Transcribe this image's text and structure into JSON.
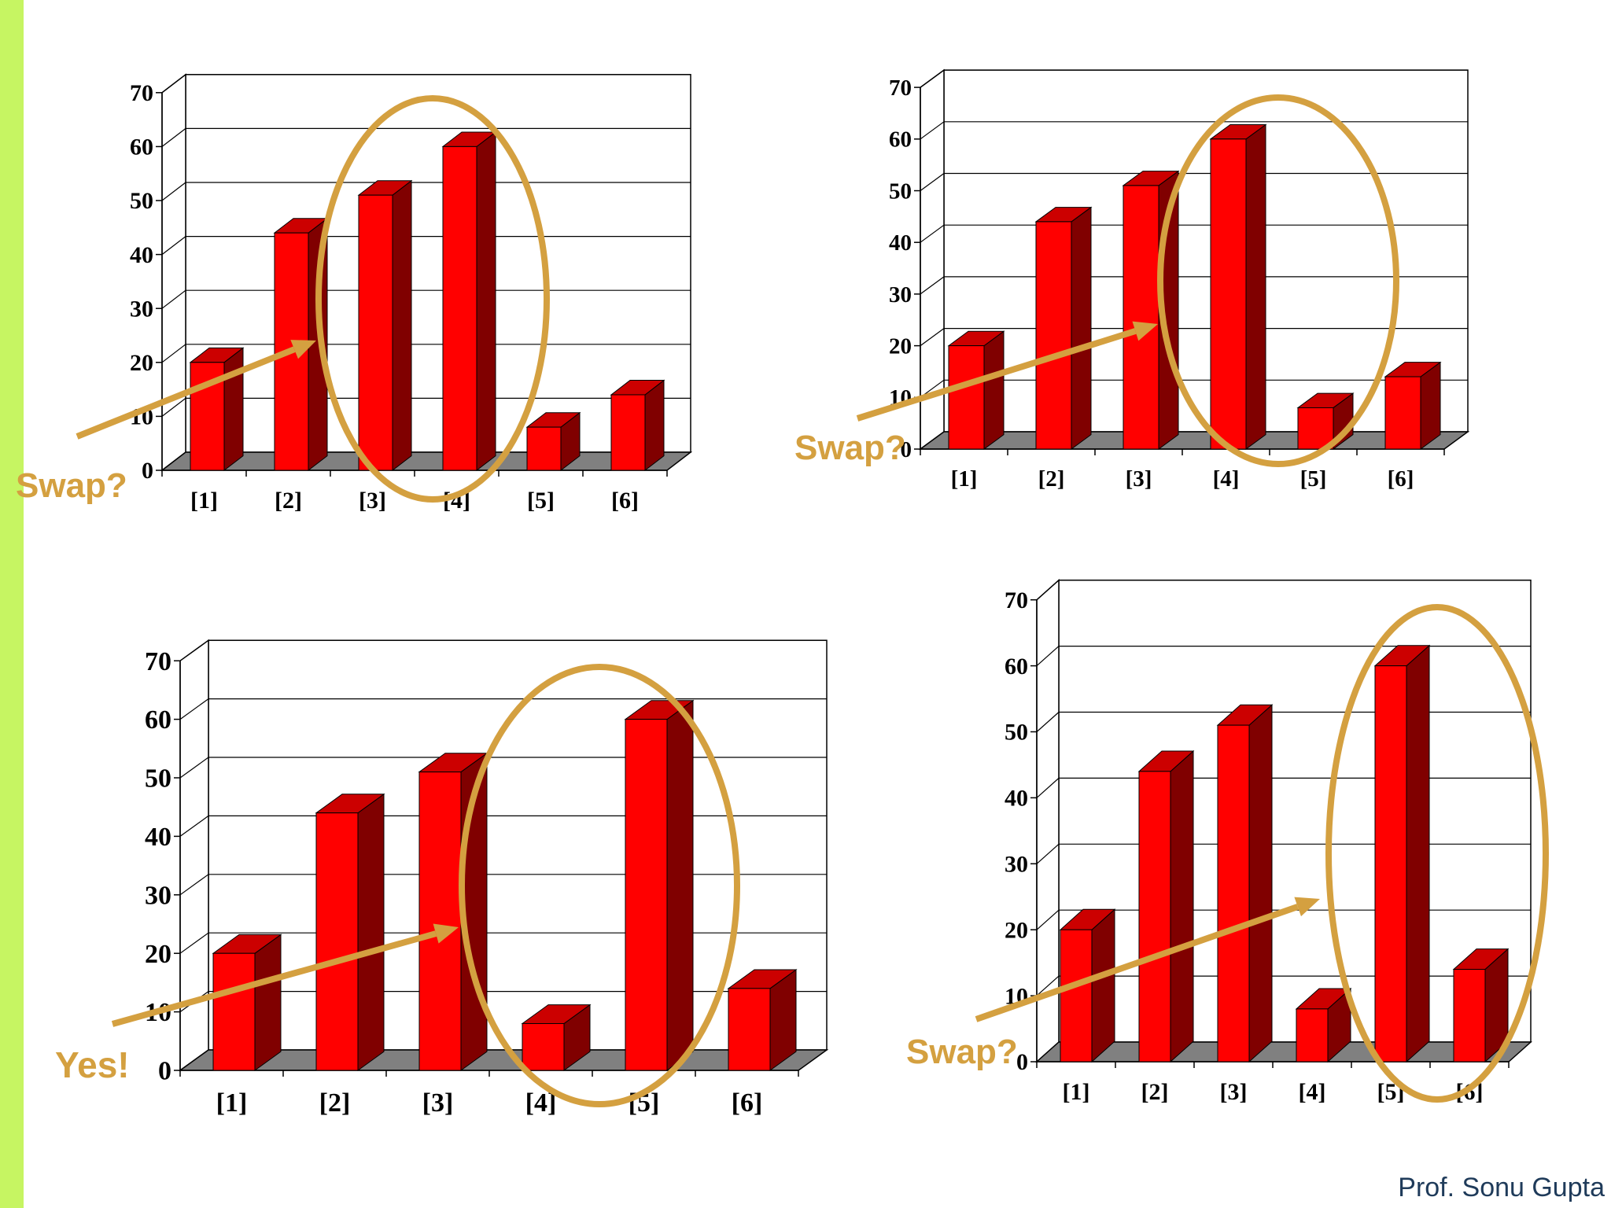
{
  "colors": {
    "accent_bar": "#c6f562",
    "bar_front": "#ff0000",
    "bar_top": "#cc0000",
    "bar_side": "#800000",
    "floor": "#808080",
    "highlight": "#d4a040",
    "footer": "#1f3b5a"
  },
  "footer": {
    "credit": "Prof. Sonu Gupta"
  },
  "chart_data": [
    {
      "type": "bar",
      "categories": [
        "[1]",
        "[2]",
        "[3]",
        "[4]",
        "[5]",
        "[6]"
      ],
      "values": [
        20,
        44,
        51,
        60,
        8,
        14
      ],
      "ylim": [
        0,
        70
      ],
      "yticks": [
        0,
        10,
        20,
        30,
        40,
        50,
        60,
        70
      ],
      "grid": true,
      "highlight_pair": [
        3,
        4
      ],
      "annotation": "Swap?"
    },
    {
      "type": "bar",
      "categories": [
        "[1]",
        "[2]",
        "[3]",
        "[4]",
        "[5]",
        "[6]"
      ],
      "values": [
        20,
        44,
        51,
        60,
        8,
        14
      ],
      "ylim": [
        0,
        70
      ],
      "yticks": [
        0,
        10,
        20,
        30,
        40,
        50,
        60,
        70
      ],
      "grid": true,
      "highlight_pair": [
        4,
        5
      ],
      "annotation": "Swap?"
    },
    {
      "type": "bar",
      "categories": [
        "[1]",
        "[2]",
        "[3]",
        "[4]",
        "[5]",
        "[6]"
      ],
      "values": [
        20,
        44,
        51,
        8,
        60,
        14
      ],
      "ylim": [
        0,
        70
      ],
      "yticks": [
        0,
        10,
        20,
        30,
        40,
        50,
        60,
        70
      ],
      "grid": true,
      "highlight_pair": [
        4,
        5
      ],
      "annotation": "Yes!"
    },
    {
      "type": "bar",
      "categories": [
        "[1]",
        "[2]",
        "[3]",
        "[4]",
        "[5]",
        "[6]"
      ],
      "values": [
        20,
        44,
        51,
        8,
        60,
        14
      ],
      "ylim": [
        0,
        70
      ],
      "yticks": [
        0,
        10,
        20,
        30,
        40,
        50,
        60,
        70
      ],
      "grid": true,
      "highlight_pair": [
        5,
        6
      ],
      "annotation": "Swap?"
    }
  ]
}
